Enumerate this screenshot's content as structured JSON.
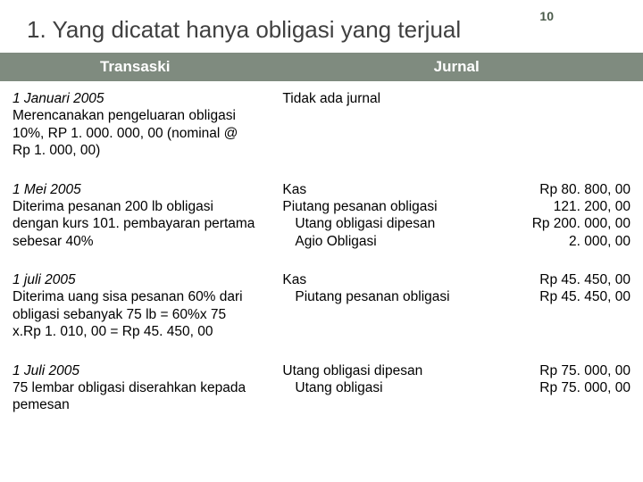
{
  "page_number": "10",
  "title": "1. Yang dicatat hanya obligasi yang terjual",
  "table": {
    "header_bg": "#7f8b7f",
    "header_fg": "#ffffff",
    "columns": [
      "Transaski",
      "Jurnal"
    ],
    "rows": [
      {
        "tx_date": "1 Januari 2005",
        "tx_body": "Merencanakan pengeluaran obligasi 10%, RP 1. 000. 000, 00 (nominal @ Rp 1. 000, 00)",
        "journal_plain": "Tidak ada jurnal"
      },
      {
        "tx_date": "1 Mei 2005",
        "tx_body": "Diterima pesanan 200 lb obligasi dengan kurs 101. pembayaran pertama sebesar 40%",
        "journal_lines": [
          {
            "label": "Kas",
            "amount": "Rp 80. 800, 00",
            "indent": 0
          },
          {
            "label": "Piutang pesanan obligasi",
            "amount": "121. 200, 00",
            "indent": 0
          },
          {
            "label": "Utang obligasi dipesan",
            "amount": "Rp 200. 000, 00",
            "indent": 1
          },
          {
            "label": "Agio Obligasi",
            "amount": "2. 000, 00",
            "indent": 1
          }
        ]
      },
      {
        "tx_date": "1 juli 2005",
        "tx_body": "Diterima uang sisa pesanan 60% dari obligasi sebanyak 75 lb = 60%x 75 x.Rp 1. 010, 00 = Rp 45. 450, 00",
        "journal_lines": [
          {
            "label": "Kas",
            "amount": "Rp 45. 450, 00",
            "indent": 0
          },
          {
            "label": "Piutang pesanan obligasi",
            "amount": "Rp 45. 450, 00",
            "indent": 1
          }
        ]
      },
      {
        "tx_date": "1 Juli 2005",
        "tx_body": "75 lembar obligasi diserahkan kepada pemesan",
        "journal_lines": [
          {
            "label": "Utang obligasi dipesan",
            "amount": "Rp 75. 000, 00",
            "indent": 0,
            "label_pad": true
          },
          {
            "label": "Utang obligasi",
            "amount": "Rp 75. 000, 00",
            "indent": 1
          }
        ]
      }
    ]
  }
}
